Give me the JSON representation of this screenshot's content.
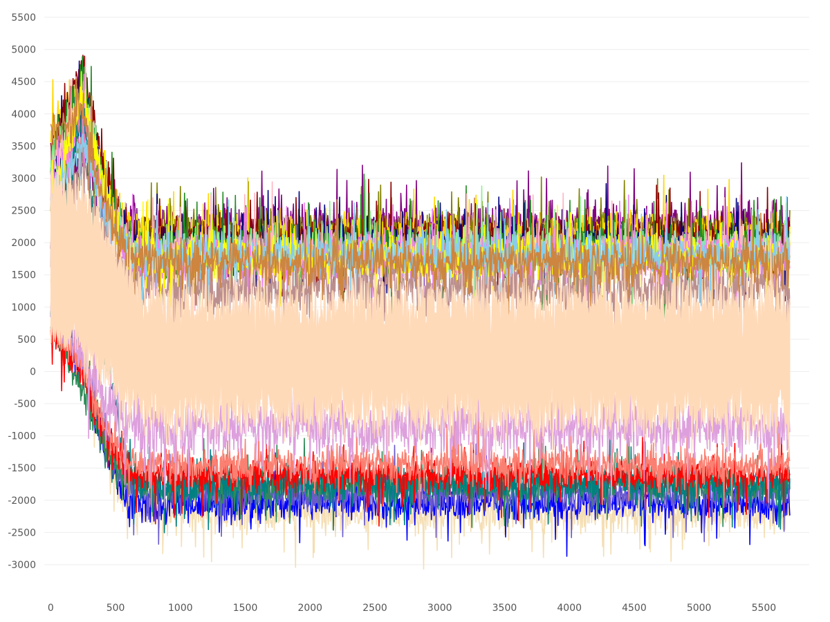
{
  "chart_data": {
    "type": "line",
    "title": "",
    "xlabel": "",
    "ylabel": "",
    "xlim": [
      -50,
      5850
    ],
    "ylim": [
      -3000,
      5500
    ],
    "x_ticks": [
      "0",
      "500",
      "1000",
      "1500",
      "2000",
      "2500",
      "3000",
      "3500",
      "4000",
      "4500",
      "5000",
      "5500"
    ],
    "y_ticks": [
      "5500",
      "5000",
      "4500",
      "4000",
      "3500",
      "3000",
      "2500",
      "2000",
      "1500",
      "1000",
      "500",
      "0",
      "-500",
      "-1000",
      "-1500",
      "-2000",
      "-2500",
      "-3000"
    ],
    "grid": true,
    "legend": "none",
    "n_points": 5700,
    "series": [
      {
        "color": "#800080",
        "start": 2000,
        "initial_peak": 3400,
        "mid": 2250,
        "noise": 300
      },
      {
        "color": "#808000",
        "start": 2600,
        "initial_peak": 3700,
        "mid": 2150,
        "noise": 280
      },
      {
        "color": "#ffd700",
        "start": 3700,
        "initial_peak": 4400,
        "mid": 2100,
        "noise": 300
      },
      {
        "color": "#8b0000",
        "start": 3300,
        "initial_peak": 4800,
        "mid": 2050,
        "noise": 280
      },
      {
        "color": "#000080",
        "start": 3000,
        "initial_peak": 4400,
        "mid": 1950,
        "noise": 280
      },
      {
        "color": "#228b22",
        "start": 3300,
        "initial_peak": 4500,
        "mid": 1900,
        "noise": 320
      },
      {
        "color": "#90ee90",
        "start": 3200,
        "initial_peak": 4200,
        "mid": 1900,
        "noise": 300
      },
      {
        "color": "#ffb6c1",
        "start": 3100,
        "initial_peak": 4300,
        "mid": 1850,
        "noise": 300
      },
      {
        "color": "#ee82ee",
        "start": 2800,
        "initial_peak": 3800,
        "mid": 1750,
        "noise": 320
      },
      {
        "color": "#bc8f8f",
        "start": 2400,
        "initial_peak": 3300,
        "mid": 1300,
        "noise": 350
      },
      {
        "color": "#f5deb3",
        "start": 1500,
        "initial_peak": 500,
        "mid": -2200,
        "noise": 250
      },
      {
        "color": "#0000ff",
        "start": 800,
        "initial_peak": 0,
        "mid": -2050,
        "noise": 220
      },
      {
        "color": "#6a5acd",
        "start": 900,
        "initial_peak": 200,
        "mid": -1900,
        "noise": 220
      },
      {
        "color": "#2e8b57",
        "start": 700,
        "initial_peak": -300,
        "mid": -1750,
        "noise": 220
      },
      {
        "color": "#008080",
        "start": 1000,
        "initial_peak": 4200,
        "mid": -1750,
        "noise": 220
      },
      {
        "color": "#ff0000",
        "start": 600,
        "initial_peak": 0,
        "mid": -1600,
        "noise": 220
      },
      {
        "color": "#fa8072",
        "start": 800,
        "initial_peak": 100,
        "mid": -1450,
        "noise": 230
      },
      {
        "color": "#dda0dd",
        "start": 1000,
        "initial_peak": 300,
        "mid": -850,
        "noise": 380
      },
      {
        "color": "#ffff00",
        "start": 2500,
        "initial_peak": 4400,
        "mid": 1800,
        "noise": 280
      },
      {
        "color": "#87ceeb",
        "start": 2600,
        "initial_peak": 3500,
        "mid": 1800,
        "noise": 280
      },
      {
        "color": "#cd853f",
        "start": 3700,
        "initial_peak": 4000,
        "mid": 1700,
        "noise": 300
      }
    ],
    "band": {
      "color": "#ffdab9",
      "upper": 1000,
      "lower": -600,
      "noise": 250
    }
  }
}
